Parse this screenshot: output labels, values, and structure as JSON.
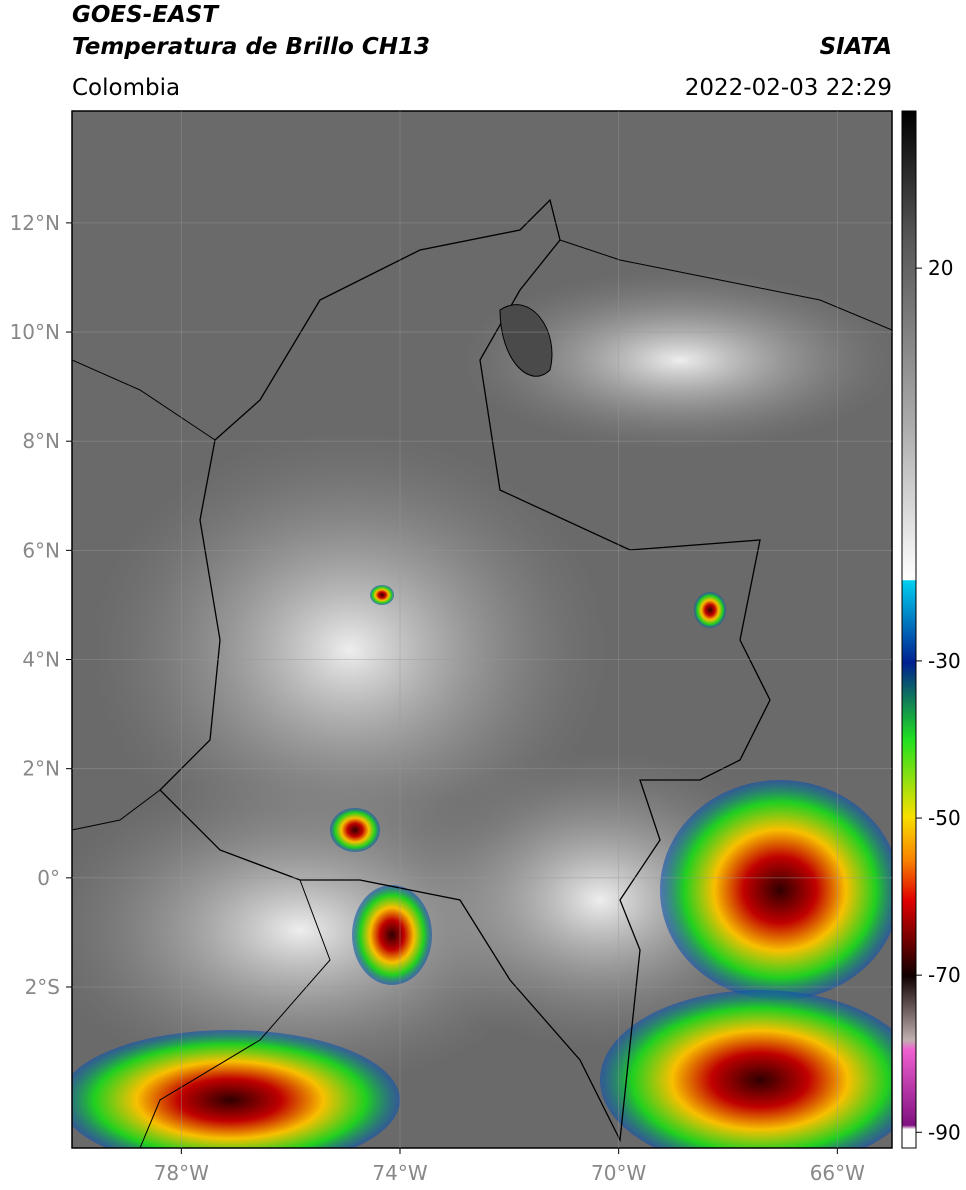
{
  "header": {
    "title": "GOES-EAST",
    "subtitle": "Temperatura de Brillo CH13",
    "region": "Colombia",
    "source": "SIATA",
    "timestamp": "2022-02-03 22:29"
  },
  "map": {
    "lon_range": [
      -80,
      -65
    ],
    "lat_range": [
      -4.95,
      14.05
    ],
    "lat_ticks": [
      {
        "value": 12,
        "label": "12°N"
      },
      {
        "value": 10,
        "label": "10°N"
      },
      {
        "value": 8,
        "label": "8°N"
      },
      {
        "value": 6,
        "label": "6°N"
      },
      {
        "value": 4,
        "label": "4°N"
      },
      {
        "value": 2,
        "label": "2°N"
      },
      {
        "value": 0,
        "label": "0°"
      },
      {
        "value": -2,
        "label": "2°S"
      }
    ],
    "lon_ticks": [
      {
        "value": -78,
        "label": "78°W"
      },
      {
        "value": -74,
        "label": "74°W"
      },
      {
        "value": -70,
        "label": "70°W"
      },
      {
        "value": -66,
        "label": "66°W"
      }
    ]
  },
  "colorbar": {
    "range": [
      -92,
      40
    ],
    "ticks": [
      20,
      -30,
      -50,
      -70,
      -90
    ]
  }
}
